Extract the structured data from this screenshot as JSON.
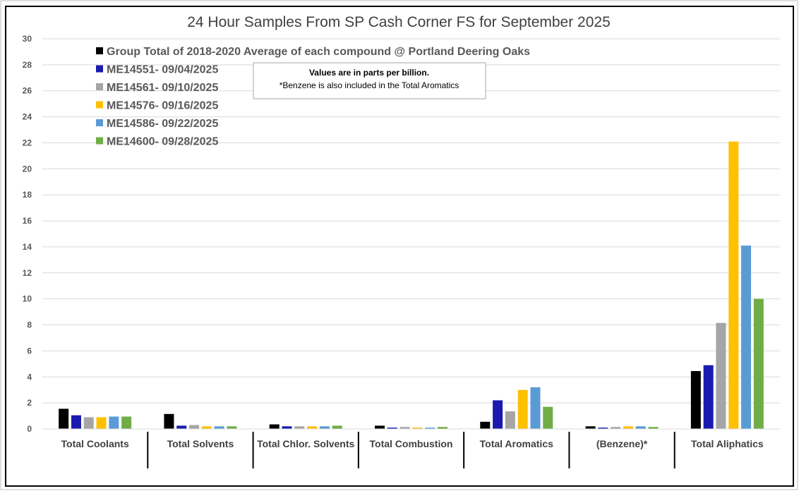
{
  "chart_data": {
    "type": "bar",
    "title": "24 Hour Samples From SP Cash Corner FS for September 2025",
    "xlabel": "",
    "ylabel": "",
    "ylim": [
      0,
      30
    ],
    "yticks": [
      "0",
      "2",
      "4",
      "6",
      "8",
      "10",
      "12",
      "14",
      "16",
      "18",
      "20",
      "22",
      "24",
      "26",
      "28",
      "30"
    ],
    "grid": true,
    "legend_position": "top-left",
    "categories": [
      "Total Coolants",
      "Total Solvents",
      "Total Chlor. Solvents",
      "Total Combustion",
      "Total Aromatics",
      "(Benzene)*",
      "Total Aliphatics"
    ],
    "series": [
      {
        "name": "Group Total of 2018-2020 Average of each compound @ Portland Deering Oaks",
        "color": "#000000",
        "values": [
          1.55,
          1.15,
          0.35,
          0.25,
          0.55,
          0.2,
          4.45
        ]
      },
      {
        "name": "ME14551- 09/04/2025",
        "color": "#1a1ab0",
        "values": [
          1.05,
          0.25,
          0.2,
          0.1,
          2.2,
          0.1,
          4.9
        ]
      },
      {
        "name": "ME14561- 09/10/2025",
        "color": "#a5a5a5",
        "values": [
          0.9,
          0.3,
          0.2,
          0.15,
          1.35,
          0.15,
          8.15
        ]
      },
      {
        "name": "ME14576- 09/16/2025",
        "color": "#ffc000",
        "values": [
          0.9,
          0.2,
          0.2,
          0.1,
          3.0,
          0.2,
          22.1
        ]
      },
      {
        "name": "ME14586- 09/22/2025",
        "color": "#5b9bd5",
        "values": [
          0.95,
          0.2,
          0.2,
          0.1,
          3.2,
          0.2,
          14.1
        ]
      },
      {
        "name": "ME14600- 09/28/2025",
        "color": "#70ad47",
        "values": [
          0.95,
          0.2,
          0.25,
          0.15,
          1.7,
          0.15,
          10.0
        ]
      }
    ],
    "annotation": {
      "line1": "Values are in parts per billion.",
      "line2": "*Benzene is also included in the Total Aromatics"
    }
  }
}
